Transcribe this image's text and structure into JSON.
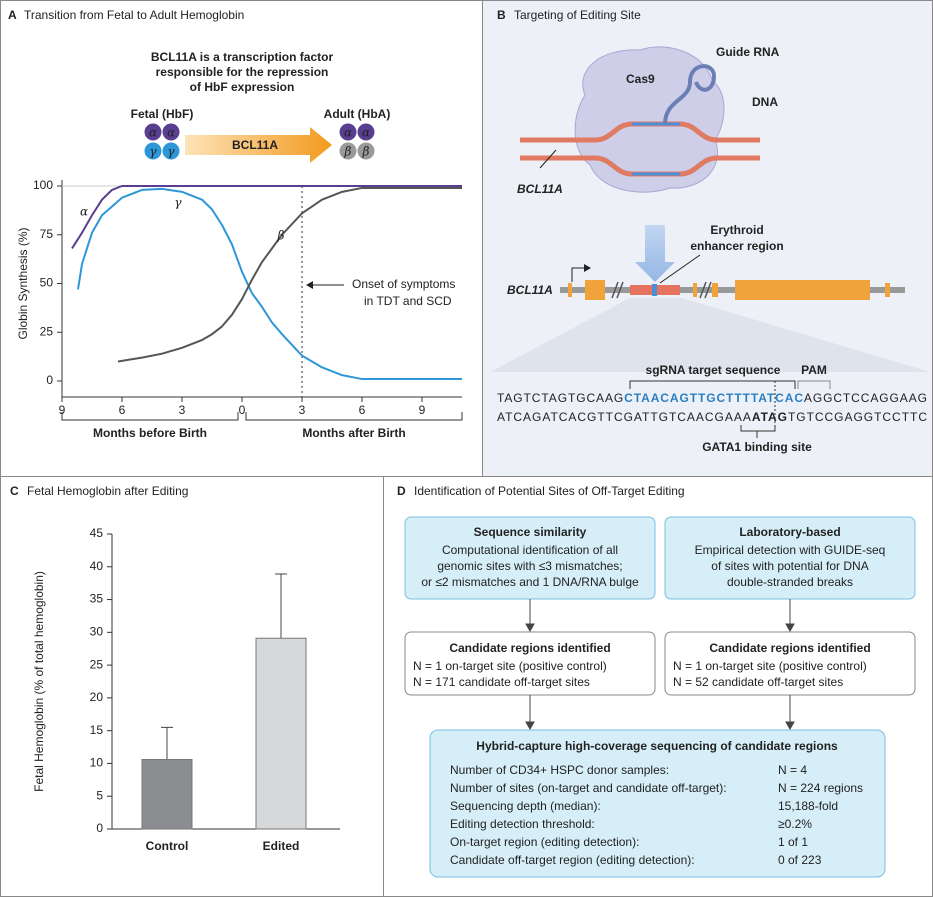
{
  "chart_data": [
    {
      "type": "line",
      "panel": "A",
      "title": "Transition from Fetal to Adult Hemoglobin",
      "ylabel": "Globin Synthesis (%)",
      "x_groups": [
        "Months before Birth",
        "Months after Birth"
      ],
      "xlim": [
        -9,
        11
      ],
      "ylim": [
        0,
        100
      ],
      "xticks": [
        {
          "value": -9,
          "label": "9"
        },
        {
          "value": -6,
          "label": "6"
        },
        {
          "value": -3,
          "label": "3"
        },
        0,
        3,
        6,
        9
      ],
      "yticks": [
        0,
        25,
        50,
        75,
        100
      ],
      "series": [
        {
          "name": "α",
          "color": "#5a3e91",
          "x": [
            -8.5,
            -8,
            -7.5,
            -7,
            -6.5,
            -6,
            11
          ],
          "values": [
            68,
            76,
            85,
            93,
            98,
            100,
            100
          ]
        },
        {
          "name": "γ",
          "color": "#2e97d8",
          "x": [
            -8.2,
            -8,
            -7.5,
            -7,
            -6,
            -5,
            -4,
            -3,
            -2,
            -1.5,
            -1,
            -0.5,
            0,
            0.5,
            1,
            1.5,
            2,
            3,
            4,
            5,
            6,
            8,
            11
          ],
          "values": [
            47,
            60,
            76,
            85,
            94,
            98,
            98.5,
            97,
            93,
            88,
            80,
            70,
            56,
            45,
            38,
            30,
            24,
            13,
            7,
            3,
            1,
            1,
            1
          ]
        },
        {
          "name": "β",
          "color": "#555555",
          "x": [
            -6.2,
            -5,
            -4,
            -3,
            -2,
            -1.5,
            -1,
            -0.5,
            0,
            0.5,
            1,
            1.5,
            2,
            3,
            4,
            5,
            6,
            8,
            11
          ],
          "values": [
            10,
            12,
            14,
            17,
            21,
            24,
            28,
            34,
            42,
            52,
            61,
            68,
            75,
            86,
            93,
            97,
            99,
            99,
            99
          ]
        }
      ],
      "annotation": {
        "x": 3,
        "lines": [
          "Onset of symptoms",
          "in TDT and SCD"
        ]
      },
      "diagram": {
        "caption": [
          "BCL11A is a transcription factor",
          "responsible for the repression",
          "of HbF expression"
        ],
        "fetal": "Fetal (HbF)",
        "adult": "Adult (HbA)",
        "factor": "BCL11A",
        "fetal_chains": [
          "α",
          "α",
          "γ",
          "γ"
        ],
        "adult_chains": [
          "α",
          "α",
          "β",
          "β"
        ]
      }
    },
    {
      "type": "bar",
      "panel": "C",
      "title": "Fetal Hemoglobin after Editing",
      "ylabel": "Fetal Hemoglobin (% of total hemoglobin)",
      "categories": [
        "Control",
        "Edited"
      ],
      "values": [
        10.6,
        29.1
      ],
      "errors": [
        4.9,
        9.8
      ],
      "colors": [
        "#8b8d90",
        "#d7d8da"
      ],
      "ylim": [
        0,
        45
      ],
      "yticks": [
        0,
        5,
        10,
        15,
        20,
        25,
        30,
        35,
        40,
        45
      ]
    }
  ],
  "panel_b": {
    "label": "B",
    "title": "Targeting of Editing Site",
    "cas9": "Cas9",
    "guide": "Guide RNA",
    "dna": "DNA",
    "gene": "BCL11A",
    "enhancer": [
      "Erythroid",
      "enhancer region"
    ],
    "sgrna": "sgRNA target sequence",
    "pam": "PAM",
    "top_strand": [
      "TAGTCTAGTGCAAG",
      "CTAACAGTTGCTTTTATCAC",
      "AGG",
      "CTCCAGGAAG"
    ],
    "bottom_strand": [
      "ATCAGATCACGTTCGATTGTCAACGAAA",
      "ATAG",
      "TGTCCGAGGTCCTTC"
    ],
    "gata1": "GATA1 binding site"
  },
  "panel_d": {
    "label": "D",
    "title": "Identification of Potential Sites of Off-Target Editing",
    "boxes": [
      {
        "title": "Sequence similarity",
        "lines": [
          "Computational identification of all",
          "genomic sites with ≤3 mismatches;",
          "or ≤2 mismatches and 1 DNA/RNA bulge"
        ]
      },
      {
        "title": "Laboratory-based",
        "lines": [
          "Empirical detection with GUIDE-seq",
          "of sites with potential for DNA",
          "double-stranded breaks"
        ]
      },
      {
        "title": "Candidate regions identified",
        "lines": [
          "N = 1 on-target site (positive control)",
          "N = 171 candidate off-target sites"
        ]
      },
      {
        "title": "Candidate regions identified",
        "lines": [
          "N = 1 on-target site (positive control)",
          "N = 52 candidate off-target sites"
        ]
      }
    ],
    "summary": {
      "title": "Hybrid-capture high-coverage sequencing of candidate regions",
      "rows": [
        [
          "Number of CD34+ HSPC donor samples:",
          "N = 4"
        ],
        [
          "Number of sites (on-target and candidate off-target):",
          "N = 224 regions"
        ],
        [
          "Sequencing depth (median):",
          "15,188-fold"
        ],
        [
          "Editing detection threshold:",
          "≥0.2%"
        ],
        [
          "On-target region (editing detection):",
          "1 of 1"
        ],
        [
          "Candidate off-target region (editing detection):",
          "0 of 223"
        ]
      ]
    }
  }
}
